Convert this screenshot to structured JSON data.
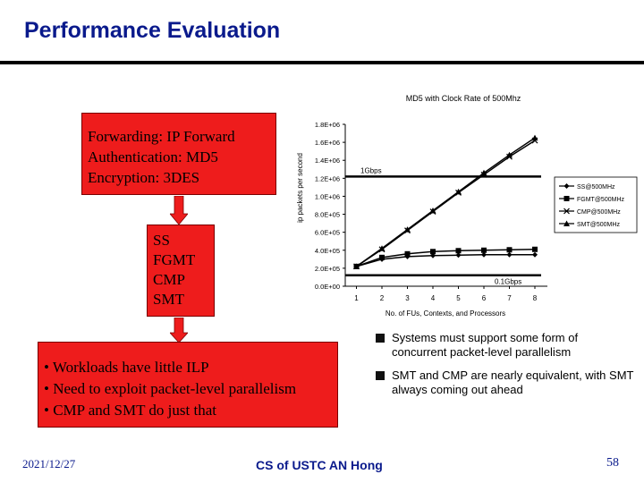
{
  "slide": {
    "title": "Performance Evaluation",
    "box1_lines": [
      "Forwarding: IP Forward",
      "Authentication: MD5",
      "Encryption: 3DES"
    ],
    "box2_lines": [
      "SS",
      "FGMT",
      "CMP",
      "SMT"
    ],
    "box3_lines": [
      "• Workloads have little ILP",
      "• Need to exploit packet-level parallelism",
      "• CMP and SMT do just that"
    ],
    "bullets": [
      "Systems must support some form of concurrent packet-level parallelism",
      "SMT and CMP are nearly equivalent, with SMT always coming out ahead"
    ],
    "date": "2021/12/27",
    "footer": "CS of USTC AN Hong",
    "page_number": "58",
    "colors": {
      "title": "#0a1a8c",
      "box": "#ee1c1c"
    }
  },
  "chart_data": {
    "type": "line",
    "title": "MD5 with Clock Rate of 500Mhz",
    "xlabel": "No. of FUs, Contexts, and Processors",
    "ylabel": "ip packets per second",
    "x": [
      1,
      2,
      3,
      4,
      5,
      6,
      7,
      8
    ],
    "ylim": [
      0,
      1800000
    ],
    "yticks": [
      0,
      200000,
      400000,
      600000,
      800000,
      1000000,
      1200000,
      1400000,
      1600000,
      1800000
    ],
    "ytick_labels": [
      "0.0E+00",
      "2.0E+05",
      "4.0E+05",
      "6.0E+05",
      "8.0E+05",
      "1.0E+06",
      "1.2E+06",
      "1.4E+06",
      "1.6E+06",
      "1.8E+06"
    ],
    "series": [
      {
        "name": "SS@500MHz",
        "marker": "diamond",
        "values": [
          220000,
          300000,
          330000,
          340000,
          345000,
          350000,
          350000,
          350000
        ]
      },
      {
        "name": "FGMT@500MHz",
        "marker": "square",
        "values": [
          220000,
          320000,
          360000,
          385000,
          395000,
          400000,
          405000,
          410000
        ]
      },
      {
        "name": "CMP@500MHz",
        "marker": "x",
        "values": [
          220000,
          410000,
          620000,
          830000,
          1040000,
          1240000,
          1440000,
          1620000
        ]
      },
      {
        "name": "SMT@500MHz",
        "marker": "triangle",
        "values": [
          220000,
          420000,
          630000,
          840000,
          1050000,
          1260000,
          1460000,
          1650000
        ]
      }
    ],
    "reference_lines": [
      {
        "label": "1Gbps",
        "value": 1220000
      },
      {
        "label": "0.1Gbps",
        "value": 122000
      }
    ],
    "legend": "right"
  }
}
